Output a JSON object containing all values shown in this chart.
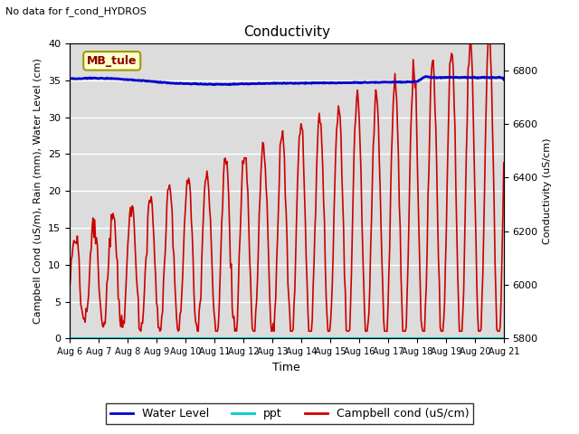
{
  "title": "Conductivity",
  "top_left_text": "No data for f_cond_HYDROS",
  "ylabel_left": "Campbell Cond (uS/m), Rain (mm), Water Level (cm)",
  "ylabel_right": "Conductivity (uS/cm)",
  "xlabel": "Time",
  "ylim_left": [
    0,
    40
  ],
  "ylim_right": [
    5800,
    6900
  ],
  "background_color": "#dcdcdc",
  "legend_label": "MB_tule",
  "legend_bg": "#ffffcc",
  "legend_border": "#999900",
  "x_tick_labels": [
    "Aug 6",
    "Aug 7",
    "Aug 8",
    "Aug 9",
    "Aug 10",
    "Aug 11",
    "Aug 12",
    "Aug 13",
    "Aug 14",
    "Aug 15",
    "Aug 16",
    "Aug 17",
    "Aug 18",
    "Aug 19",
    "Aug 20",
    "Aug 21"
  ],
  "water_level_color": "#0000cc",
  "ppt_color": "#00cccc",
  "campbell_color": "#cc0000",
  "grid_color": "#ffffff",
  "title_fontsize": 11,
  "axis_fontsize": 8,
  "tick_fontsize": 8,
  "legend_fontsize": 9
}
